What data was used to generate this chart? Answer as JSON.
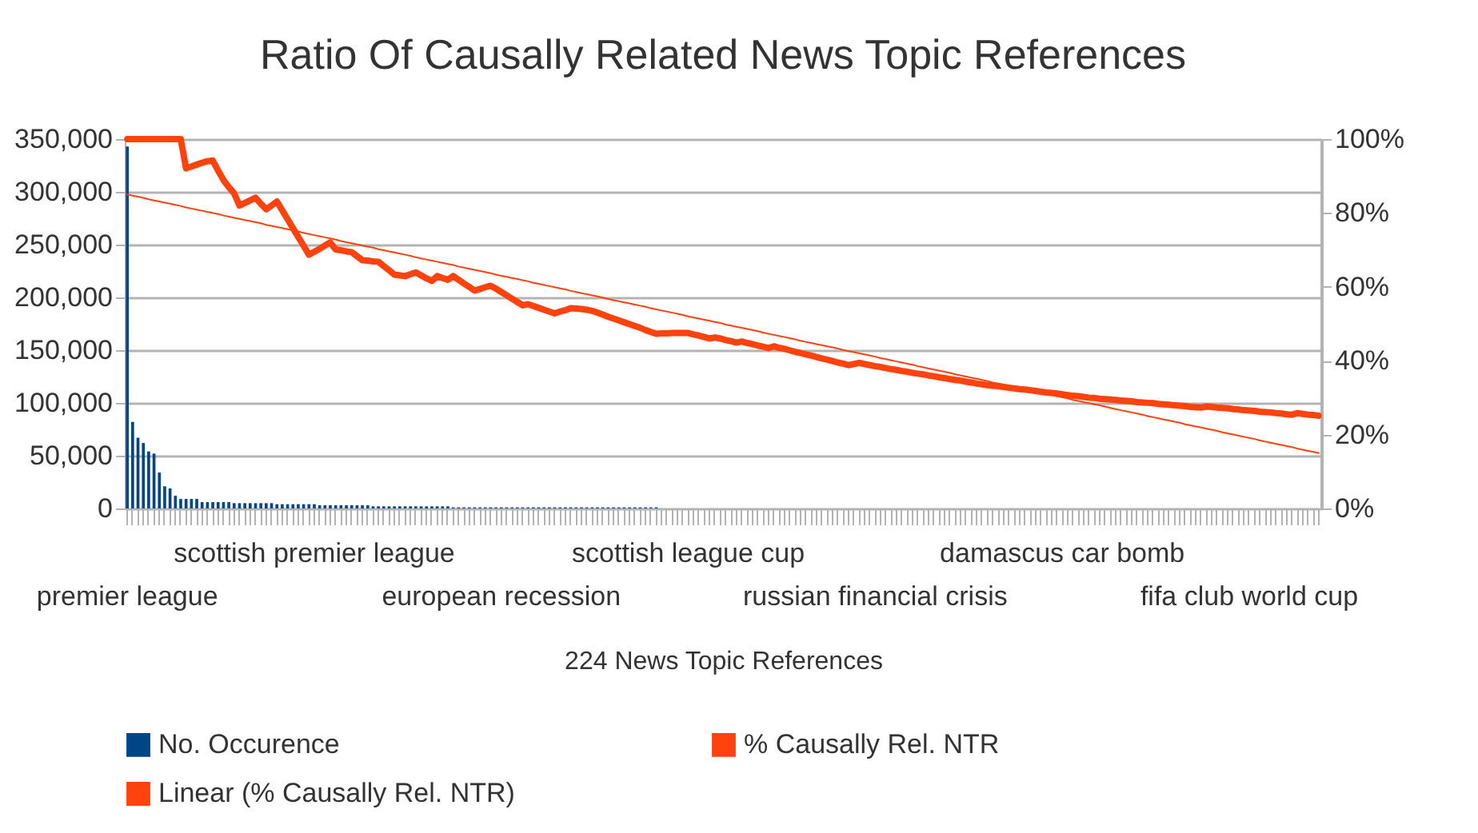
{
  "chart_data": {
    "type": "bar",
    "title": "Ratio Of Causally Related News Topic References",
    "xlabel": "224 News Topic References",
    "categories": [
      "premier league",
      null,
      null,
      null,
      null,
      null,
      null,
      null,
      null,
      null,
      null,
      null,
      null,
      null,
      null,
      null,
      null,
      null,
      null,
      null,
      null,
      null,
      null,
      null,
      null,
      null,
      null,
      null,
      null,
      null,
      null,
      null,
      null,
      null,
      null,
      "scottish premier league",
      null,
      null,
      null,
      null,
      null,
      null,
      null,
      null,
      null,
      null,
      null,
      null,
      null,
      null,
      null,
      null,
      null,
      null,
      null,
      null,
      null,
      null,
      null,
      null,
      null,
      null,
      null,
      null,
      null,
      null,
      null,
      null,
      null,
      null,
      "european recession",
      null,
      null,
      null,
      null,
      null,
      null,
      null,
      null,
      null,
      null,
      null,
      null,
      null,
      null,
      null,
      null,
      null,
      null,
      null,
      null,
      null,
      null,
      null,
      null,
      null,
      null,
      null,
      null,
      null,
      null,
      null,
      null,
      null,
      null,
      "scottish league cup",
      null,
      null,
      null,
      null,
      null,
      null,
      null,
      null,
      null,
      null,
      null,
      null,
      null,
      null,
      null,
      null,
      null,
      null,
      null,
      null,
      null,
      null,
      null,
      null,
      null,
      null,
      null,
      null,
      null,
      null,
      null,
      null,
      null,
      null,
      "russian financial crisis",
      null,
      null,
      null,
      null,
      null,
      null,
      null,
      null,
      null,
      null,
      null,
      null,
      null,
      null,
      null,
      null,
      null,
      null,
      null,
      null,
      null,
      null,
      null,
      null,
      null,
      null,
      null,
      null,
      null,
      null,
      null,
      null,
      null,
      null,
      "damascus car bomb",
      null,
      null,
      null,
      null,
      null,
      null,
      null,
      null,
      null,
      null,
      null,
      null,
      null,
      null,
      null,
      null,
      null,
      null,
      null,
      null,
      null,
      null,
      null,
      null,
      null,
      null,
      null,
      null,
      null,
      null,
      null,
      null,
      null,
      null,
      "fifa club world cup",
      null,
      null,
      null,
      null,
      null,
      null,
      null,
      null,
      null,
      null,
      null,
      null,
      null
    ],
    "series": [
      {
        "name": "No. Occurence",
        "color": "#004586",
        "values": [
          343000,
          82000,
          67000,
          62000,
          54000,
          52000,
          34000,
          21000,
          19000,
          12000,
          9000,
          9000,
          9000,
          9000,
          6000,
          6000,
          6000,
          6000,
          6000,
          6000,
          5000,
          5000,
          5000,
          5000,
          5000,
          5000,
          5000,
          5000,
          4000,
          4000,
          4000,
          4000,
          4000,
          4000,
          4000,
          4000,
          3000,
          3000,
          3000,
          3000,
          3000,
          3000,
          3000,
          3000,
          3000,
          3000,
          2000,
          2000,
          2000,
          2000,
          2000,
          2000,
          2000,
          2000,
          2000,
          2000,
          2000,
          2000,
          2000,
          2000,
          2000,
          1000,
          1000,
          1000,
          1000,
          1000,
          1000,
          1000,
          1000,
          1000,
          1000,
          1000,
          1000,
          1000,
          1000,
          1000,
          1000,
          1000,
          1000,
          1000,
          1000,
          1000,
          1000,
          1000,
          1000,
          1000,
          1000,
          1000,
          1000,
          1000,
          1000,
          1000,
          1000,
          1000,
          1000,
          1000,
          1000,
          1000,
          1000,
          1000,
          0,
          0,
          0,
          0,
          0,
          0,
          0,
          0,
          0,
          0,
          0,
          0,
          0,
          0,
          0,
          0,
          0,
          0,
          0,
          0,
          0,
          0,
          0,
          0,
          0,
          0,
          0,
          0,
          0,
          0,
          0,
          0,
          0,
          0,
          0,
          0,
          0,
          0,
          0,
          0,
          0,
          0,
          0,
          0,
          0,
          0,
          0,
          0,
          0,
          0,
          0,
          0,
          0,
          0,
          0,
          0,
          0,
          0,
          0,
          0,
          0,
          0,
          0,
          0,
          0,
          0,
          0,
          0,
          0,
          0,
          0,
          0,
          0,
          0,
          0,
          0,
          0,
          0,
          0,
          0,
          0,
          0,
          0,
          0,
          0,
          0,
          0,
          0,
          0,
          0,
          0,
          0,
          0,
          0,
          0,
          0,
          0,
          0,
          0,
          0,
          0,
          0,
          0,
          0,
          0,
          0,
          0,
          0,
          0,
          0,
          0,
          0,
          0,
          0,
          0,
          0,
          0,
          0,
          0,
          0,
          0,
          0,
          0,
          0
        ]
      },
      {
        "name": "% Causally Rel. NTR",
        "type": "line",
        "axis": "y2",
        "color": "#ff420e",
        "values": [
          100,
          100,
          100,
          100,
          100,
          100,
          100,
          100,
          100,
          100,
          100,
          92.1,
          92.6,
          93.1,
          93.6,
          94.0,
          94.2,
          91.5,
          88.9,
          87.0,
          85.3,
          82.0,
          82.7,
          83.4,
          84.1,
          82.5,
          81.0,
          82.0,
          83.1,
          80.7,
          78.3,
          75.9,
          73.5,
          71.1,
          68.7,
          69.5,
          70.3,
          71.2,
          72.0,
          70.1,
          69.9,
          69.6,
          69.4,
          68.3,
          67.2,
          67.1,
          66.9,
          66.8,
          65.6,
          64.5,
          63.3,
          63.1,
          62.9,
          63.4,
          63.9,
          63.1,
          62.3,
          61.6,
          62.9,
          62.4,
          61.9,
          62.9,
          61.9,
          60.9,
          60.0,
          59.0,
          59.4,
          59.9,
          60.3,
          59.5,
          58.6,
          57.7,
          56.8,
          55.9,
          55.0,
          55.3,
          54.8,
          54.3,
          53.8,
          53.3,
          52.8,
          53.3,
          53.7,
          54.2,
          54.1,
          54.0,
          53.8,
          53.5,
          53.0,
          52.5,
          51.9,
          51.4,
          50.9,
          50.4,
          49.9,
          49.4,
          48.9,
          48.3,
          47.8,
          47.3,
          47.4,
          47.4,
          47.5,
          47.5,
          47.5,
          47.5,
          47.1,
          46.8,
          46.4,
          46.0,
          46.3,
          46.0,
          45.6,
          45.3,
          44.9,
          45.2,
          44.8,
          44.5,
          44.1,
          43.8,
          43.4,
          43.9,
          43.5,
          43.2,
          42.8,
          42.4,
          42.1,
          41.7,
          41.4,
          41.0,
          40.6,
          40.3,
          39.9,
          39.5,
          39.2,
          38.8,
          39.1,
          39.4,
          39.1,
          38.8,
          38.5,
          38.3,
          38.0,
          37.7,
          37.5,
          37.2,
          37.0,
          36.7,
          36.5,
          36.3,
          36.0,
          35.8,
          35.5,
          35.3,
          35.0,
          34.8,
          34.6,
          34.3,
          34.1,
          33.8,
          33.6,
          33.4,
          33.2,
          33.1,
          32.9,
          32.7,
          32.5,
          32.3,
          32.2,
          32.0,
          31.8,
          31.6,
          31.4,
          31.3,
          31.1,
          30.9,
          30.7,
          30.5,
          30.4,
          30.2,
          30.0,
          29.9,
          29.7,
          29.6,
          29.5,
          29.4,
          29.2,
          29.1,
          29.0,
          28.8,
          28.7,
          28.6,
          28.5,
          28.3,
          28.2,
          28.1,
          27.9,
          27.8,
          27.7,
          27.5,
          27.4,
          27.3,
          27.6,
          27.5,
          27.3,
          27.2,
          27.1,
          26.9,
          26.8,
          26.6,
          26.5,
          26.4,
          26.2,
          26.1,
          26.0,
          25.8,
          25.7,
          25.5,
          25.4,
          25.8,
          25.6,
          25.4,
          25.3,
          25.1
        ]
      },
      {
        "name": "Linear (% Causally Rel. NTR)",
        "type": "line",
        "axis": "y2",
        "color": "#ff420e",
        "values": [
          85.0,
          84.7,
          84.4,
          84.1,
          83.7,
          83.4,
          83.1,
          82.8,
          82.5,
          82.2,
          81.9,
          81.5,
          81.2,
          80.9,
          80.6,
          80.3,
          80.0,
          79.7,
          79.3,
          79.0,
          78.7,
          78.4,
          78.1,
          77.8,
          77.5,
          77.2,
          76.8,
          76.5,
          76.2,
          75.9,
          75.6,
          75.3,
          75.0,
          74.6,
          74.3,
          74.0,
          73.7,
          73.4,
          73.1,
          72.8,
          72.4,
          72.1,
          71.8,
          71.5,
          71.2,
          70.9,
          70.6,
          70.2,
          69.9,
          69.6,
          69.3,
          69.0,
          68.7,
          68.4,
          68.0,
          67.7,
          67.4,
          67.1,
          66.8,
          66.5,
          66.2,
          65.9,
          65.5,
          65.2,
          64.9,
          64.6,
          64.3,
          64.0,
          63.7,
          63.3,
          63.0,
          62.7,
          62.4,
          62.1,
          61.8,
          61.5,
          61.1,
          60.8,
          60.5,
          60.2,
          59.9,
          59.6,
          59.3,
          58.9,
          58.6,
          58.3,
          58.0,
          57.7,
          57.4,
          57.1,
          56.7,
          56.4,
          56.1,
          55.8,
          55.5,
          55.2,
          54.9,
          54.6,
          54.2,
          53.9,
          53.6,
          53.3,
          53.0,
          52.7,
          52.4,
          52.0,
          51.7,
          51.4,
          51.1,
          50.8,
          50.5,
          50.2,
          49.8,
          49.5,
          49.2,
          48.9,
          48.6,
          48.3,
          48.0,
          47.6,
          47.3,
          47.0,
          46.7,
          46.4,
          46.1,
          45.8,
          45.4,
          45.1,
          44.8,
          44.5,
          44.2,
          43.9,
          43.6,
          43.3,
          42.9,
          42.6,
          42.3,
          42.0,
          41.7,
          41.4,
          41.1,
          40.7,
          40.4,
          40.1,
          39.8,
          39.5,
          39.2,
          38.9,
          38.5,
          38.2,
          37.9,
          37.6,
          37.3,
          37.0,
          36.7,
          36.3,
          36.0,
          35.7,
          35.4,
          35.1,
          34.8,
          34.5,
          34.1,
          33.8,
          33.5,
          33.2,
          32.9,
          32.6,
          32.3,
          32.0,
          31.6,
          31.3,
          31.0,
          30.7,
          30.4,
          30.1,
          29.8,
          29.4,
          29.1,
          28.8,
          28.5,
          28.2,
          27.9,
          27.6,
          27.2,
          26.9,
          26.6,
          26.3,
          26.0,
          25.7,
          25.4,
          25.0,
          24.7,
          24.4,
          24.1,
          23.8,
          23.5,
          23.2,
          22.8,
          22.5,
          22.2,
          21.9,
          21.6,
          21.3,
          21.0,
          20.6,
          20.3,
          20.0,
          19.7,
          19.4,
          19.1,
          18.8,
          18.4,
          18.1,
          17.8,
          17.5,
          17.2,
          16.9,
          16.6,
          16.2,
          15.9,
          15.6,
          15.3,
          15.0
        ]
      }
    ],
    "ylim": [
      0,
      350000
    ],
    "yticks": [
      0,
      {
        "value": 50000,
        "label": "50,000"
      },
      {
        "value": 100000,
        "label": "100,000"
      },
      {
        "value": 150000,
        "label": "150,000"
      },
      {
        "value": 200000,
        "label": "200,000"
      },
      {
        "value": 250000,
        "label": "250,000"
      },
      {
        "value": 300000,
        "label": "300,000"
      },
      {
        "value": 350000,
        "label": "350,000"
      }
    ],
    "y2lim": [
      0,
      100
    ],
    "y2ticks": [
      {
        "value": 0,
        "label": "0%"
      },
      {
        "value": 20,
        "label": "20%"
      },
      {
        "value": 40,
        "label": "40%"
      },
      {
        "value": 60,
        "label": "60%"
      },
      {
        "value": 80,
        "label": "80%"
      },
      {
        "value": 100,
        "label": "100%"
      }
    ],
    "grid": "y",
    "legend": "bottom"
  }
}
